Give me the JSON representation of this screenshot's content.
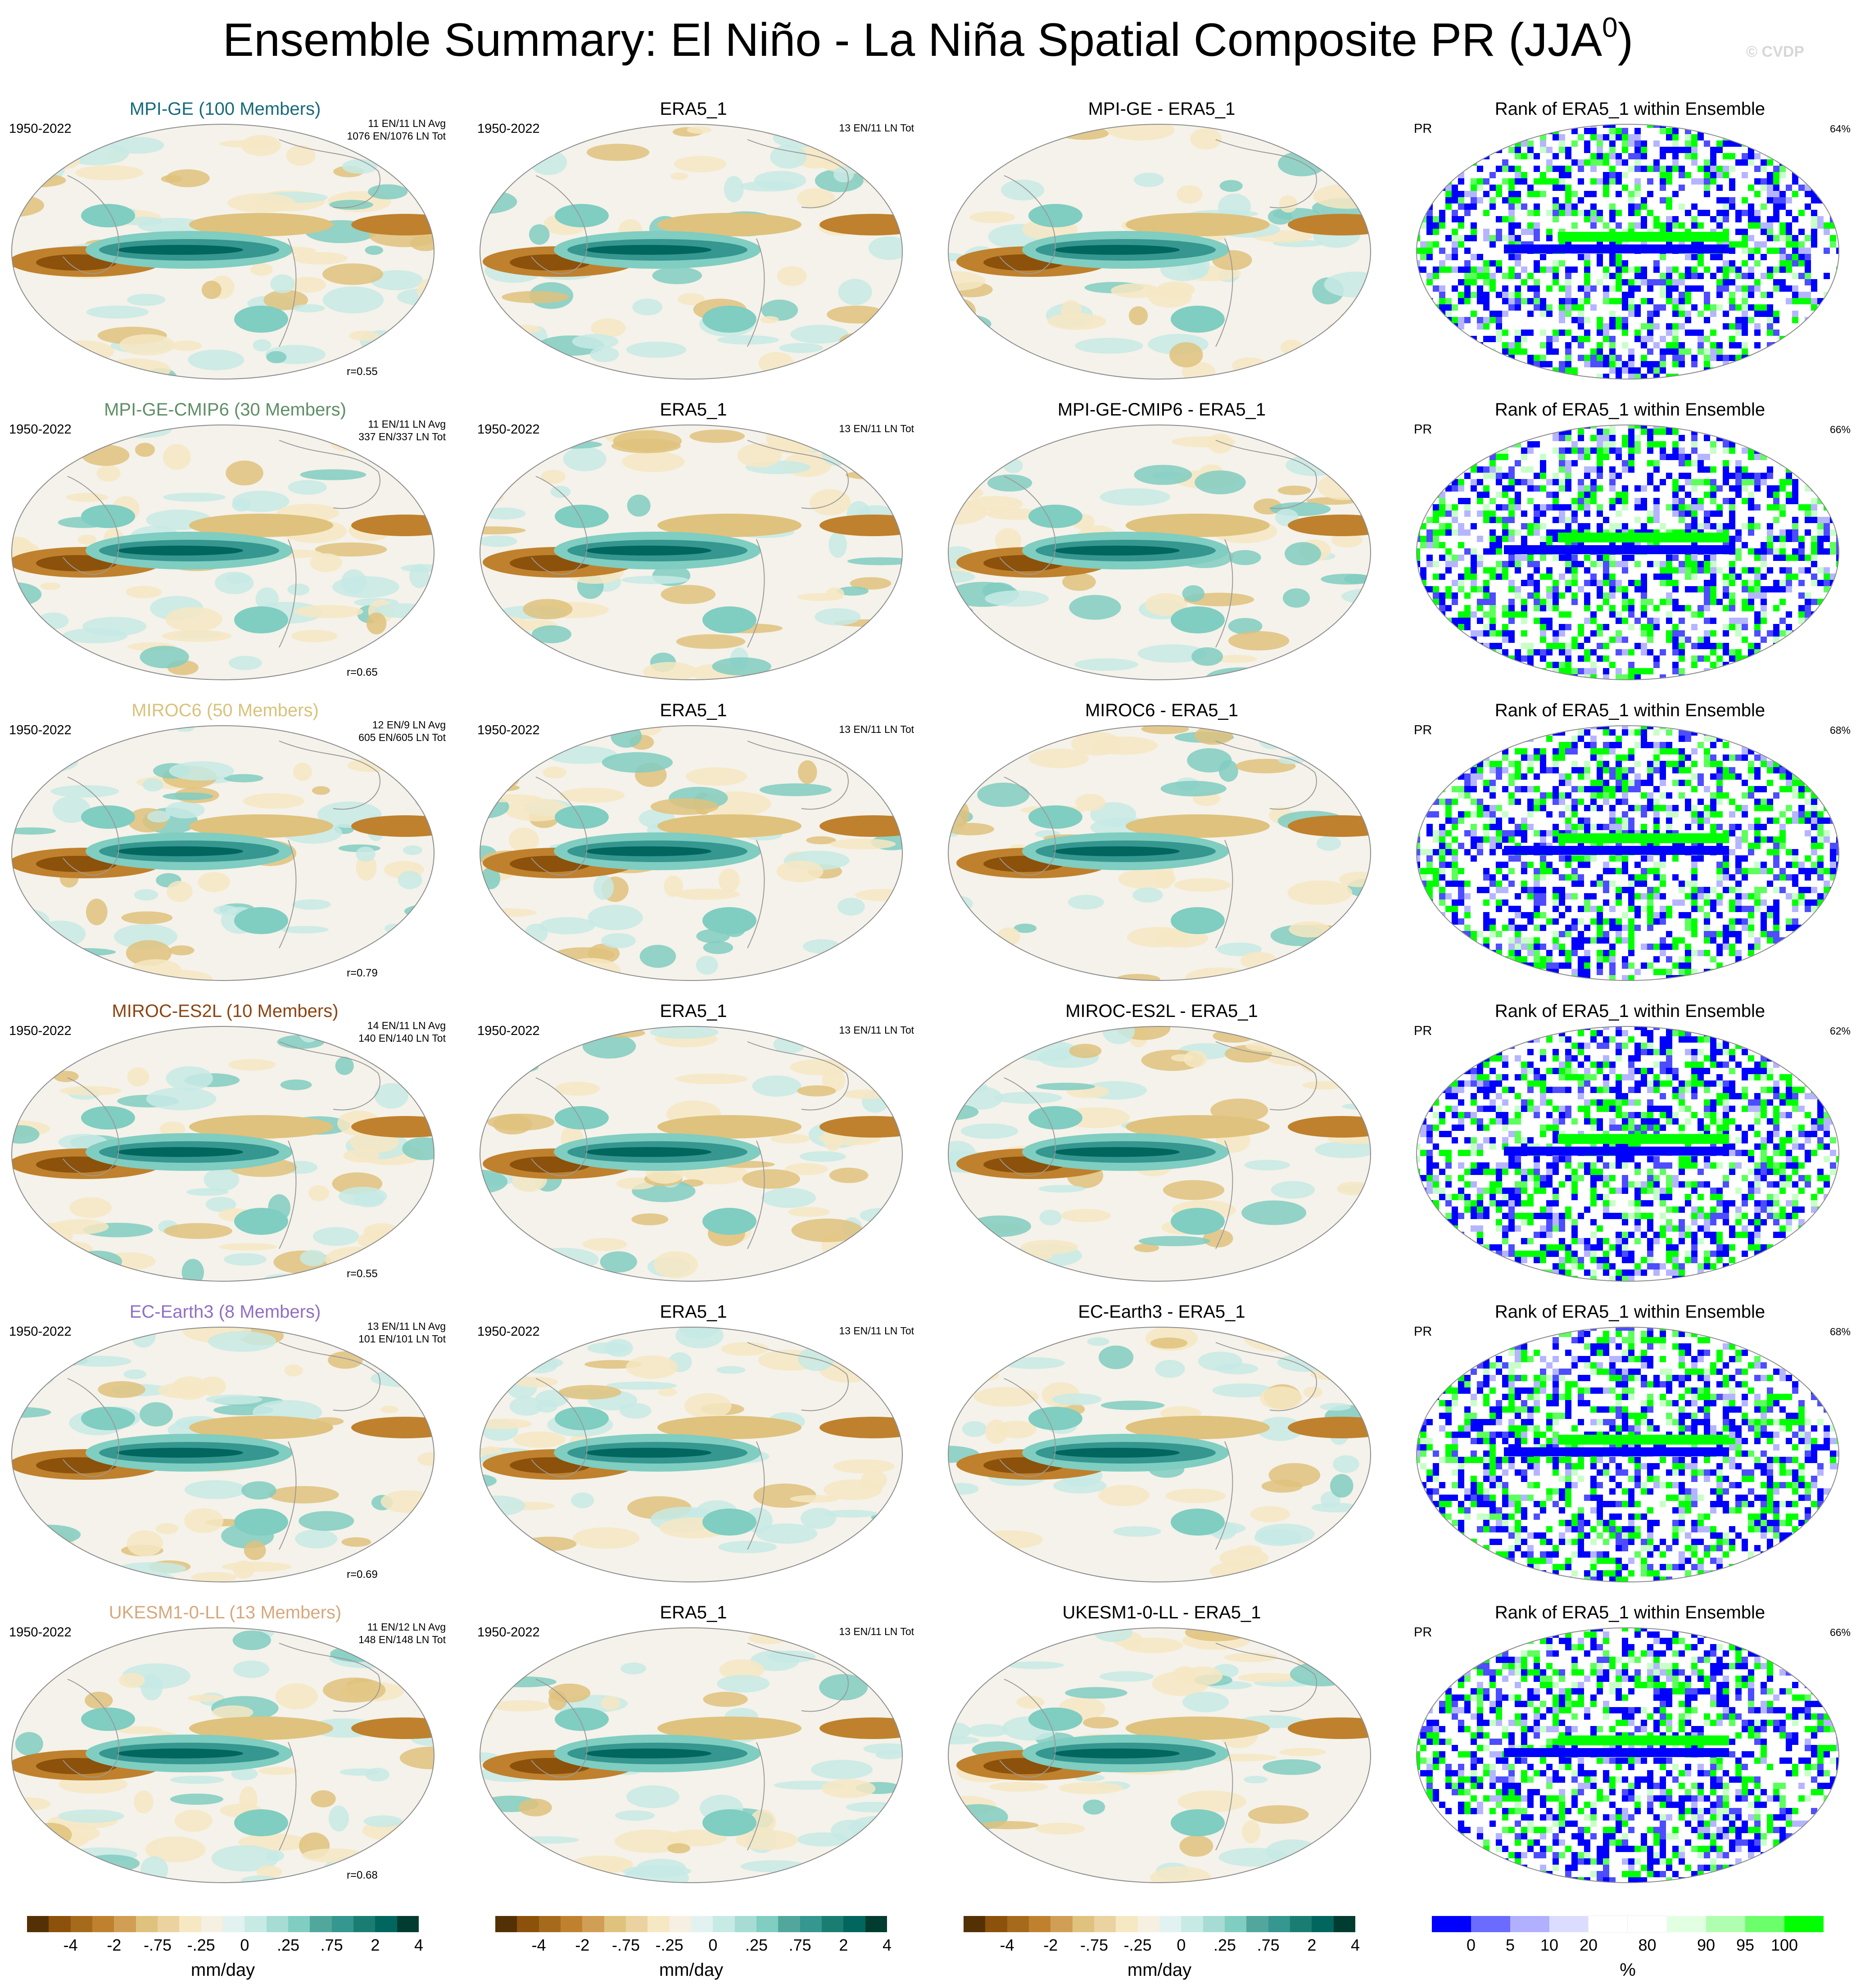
{
  "title": "Ensemble Summary: El Niño - La Niña Spatial Composite PR (JJA",
  "title_sup": "0",
  "title_close": ")",
  "watermark": "© CVDP",
  "era_label": "ERA5_1",
  "era_count": "13 EN/11 LN Tot",
  "years": "1950-2022",
  "rank_title": "Rank of ERA5_1 within Ensemble",
  "rank_var": "PR",
  "rows": [
    {
      "model": "MPI-GE (100 Members)",
      "color": "#17697a",
      "avg": "11 EN/11 LN Avg",
      "tot": "1076 EN/1076 LN Tot",
      "r": "r=0.55",
      "diff": "MPI-GE - ERA5_1",
      "pct": "64%"
    },
    {
      "model": "MPI-GE-CMIP6 (30 Members)",
      "color": "#5f8e66",
      "avg": "11 EN/11 LN Avg",
      "tot": "337 EN/337 LN Tot",
      "r": "r=0.65",
      "diff": "MPI-GE-CMIP6 - ERA5_1",
      "pct": "66%"
    },
    {
      "model": "MIROC6 (50 Members)",
      "color": "#d8c27c",
      "avg": "12 EN/9 LN Avg",
      "tot": "605 EN/605 LN Tot",
      "r": "r=0.79",
      "diff": "MIROC6 - ERA5_1",
      "pct": "68%"
    },
    {
      "model": "MIROC-ES2L (10 Members)",
      "color": "#8b4513",
      "avg": "14 EN/11 LN Avg",
      "tot": "140 EN/140 LN Tot",
      "r": "r=0.55",
      "diff": "MIROC-ES2L - ERA5_1",
      "pct": "62%"
    },
    {
      "model": "EC-Earth3 (8 Members)",
      "color": "#8f6fc4",
      "avg": "13 EN/11 LN Avg",
      "tot": "101 EN/101 LN Tot",
      "r": "r=0.69",
      "diff": "EC-Earth3 - ERA5_1",
      "pct": "68%"
    },
    {
      "model": "UKESM1-0-LL (13 Members)",
      "color": "#d6a87c",
      "avg": "11 EN/12 LN Avg",
      "tot": "148 EN/148 LN Tot",
      "r": "r=0.68",
      "diff": "UKESM1-0-LL - ERA5_1",
      "pct": "66%"
    }
  ],
  "colorbar_pr": {
    "colors": [
      "#543005",
      "#8c510a",
      "#a66a1c",
      "#bf812d",
      "#d19e55",
      "#dfc27d",
      "#ead3a0",
      "#f6e8c3",
      "#f5f0e2",
      "#e2f2f0",
      "#c7eae5",
      "#a6dcd3",
      "#80cdc1",
      "#52a79d",
      "#35978f",
      "#1b7d72",
      "#01665e",
      "#003c30"
    ],
    "ticks": [
      "-4",
      "-2",
      "-.75",
      "-.25",
      "0",
      ".25",
      ".75",
      "2",
      "4"
    ],
    "unit": "mm/day"
  },
  "colorbar_rank": {
    "colors": [
      "#0000ff",
      "#6b6bff",
      "#b0b0ff",
      "#dcdcff",
      "#ffffff",
      "#ffffff",
      "#e2ffe2",
      "#b0ffb0",
      "#6bff6b",
      "#00ff00"
    ],
    "ticks": [
      "0",
      "5",
      "10",
      "20",
      "80",
      "90",
      "95",
      "100"
    ],
    "unit": "%"
  },
  "map_palette": {
    "brown": [
      "#8c510a",
      "#bf812d",
      "#dfc27d",
      "#f6e8c3"
    ],
    "teal": [
      "#c7eae5",
      "#80cdc1",
      "#35978f",
      "#01665e"
    ],
    "rank": [
      "#0000ff",
      "#4d4dff",
      "#b5b5ff",
      "#ffffff",
      "#c8ffc8",
      "#5cff5c",
      "#00ff00"
    ]
  }
}
